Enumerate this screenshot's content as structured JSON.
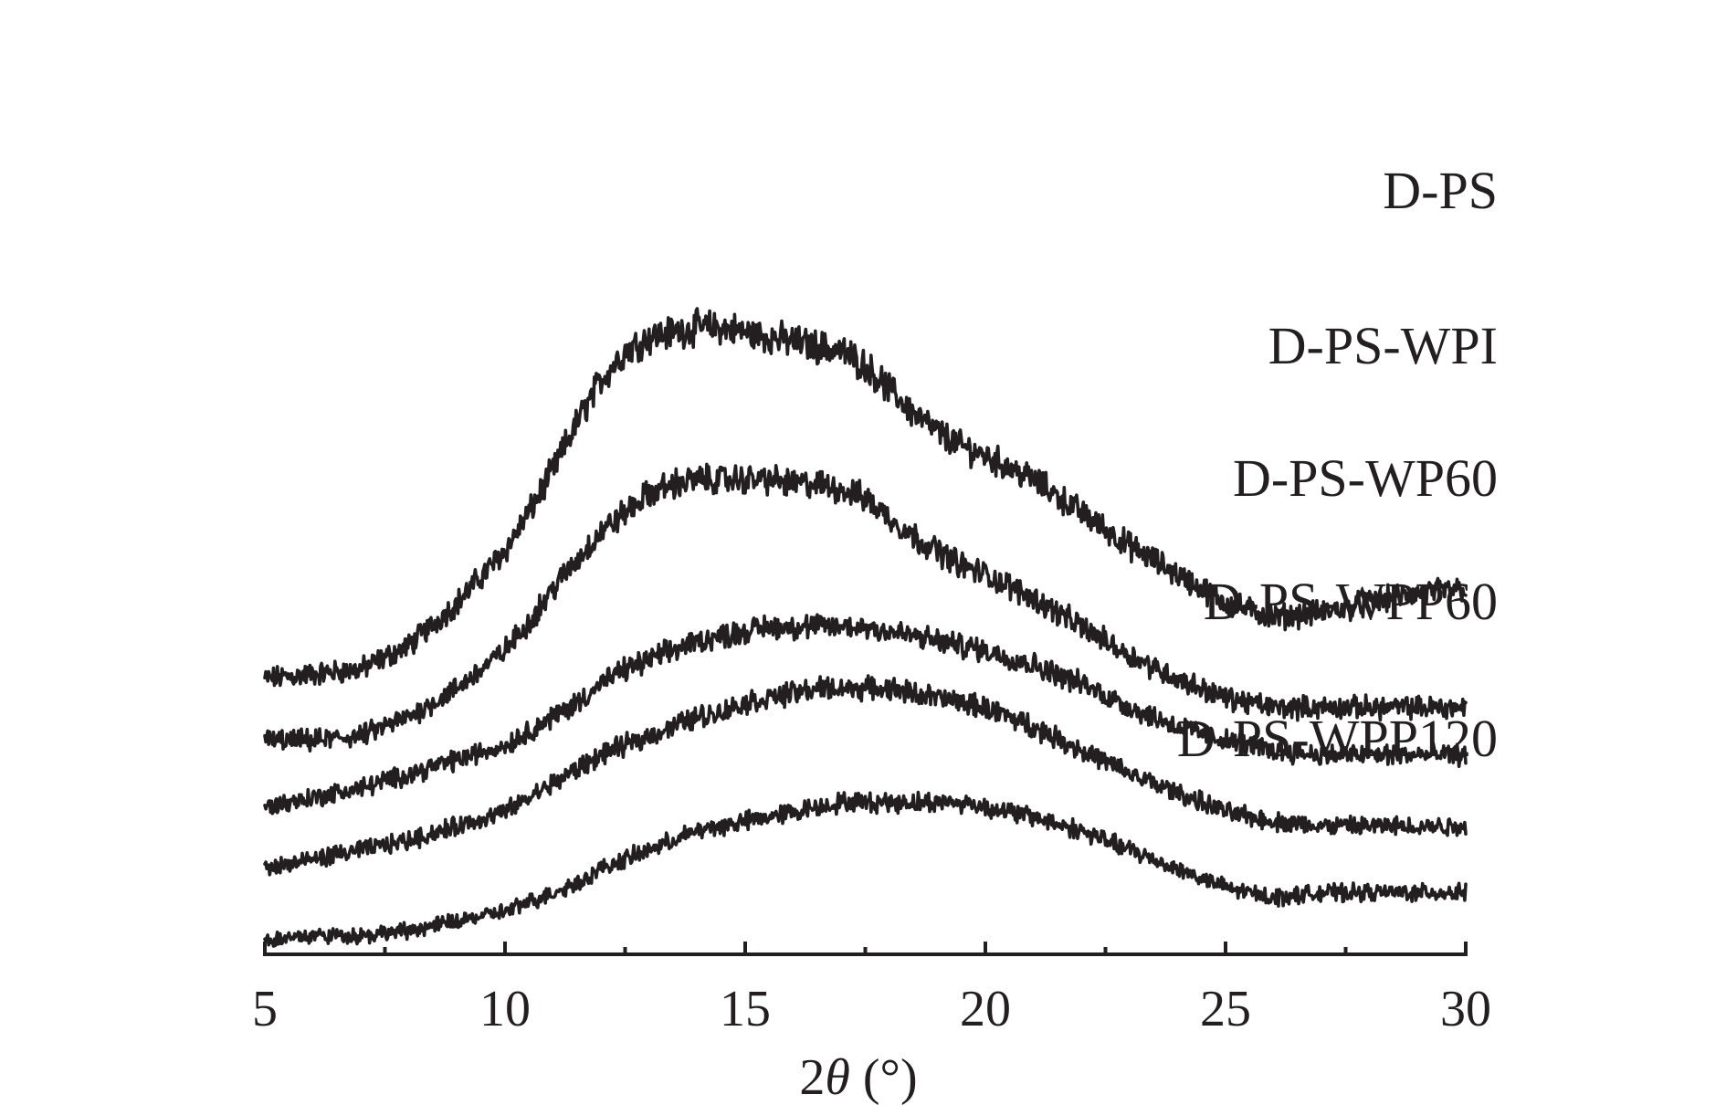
{
  "chart_data": {
    "type": "line",
    "xlabel_prefix": "2",
    "xlabel_symbol": "θ",
    "xlabel_suffix": " (°)",
    "xlim": [
      5,
      30
    ],
    "xticks": [
      5,
      10,
      15,
      20,
      25,
      30
    ],
    "xticks_minor": [
      7.5,
      12.5,
      17.5,
      22.5,
      27.5
    ],
    "y_axis_shown": false,
    "grid": false,
    "legend": "labels placed beside each curve (right side)",
    "line_color": "#231f20",
    "series": [
      {
        "name": "D-PS",
        "x": [
          5,
          6,
          7,
          8,
          9,
          10,
          10.5,
          11,
          11.5,
          12,
          12.5,
          13,
          13.5,
          14,
          14.5,
          15,
          15.5,
          16,
          16.5,
          17,
          17.5,
          18,
          18.5,
          19,
          19.5,
          20,
          21,
          22,
          23,
          24,
          25,
          26,
          27,
          28,
          29,
          30
        ],
        "y": [
          23,
          24,
          25,
          30,
          39,
          50,
          58,
          67,
          77,
          86,
          92,
          95,
          96,
          97,
          97,
          96,
          95,
          94,
          93,
          92,
          89,
          84,
          79,
          75,
          72,
          70,
          65,
          58,
          51,
          45,
          39,
          36,
          37,
          39,
          41,
          42
        ]
      },
      {
        "name": "D-PS-WPI",
        "x": [
          5,
          6,
          7,
          8,
          9,
          10,
          10.5,
          11,
          11.5,
          12,
          12.5,
          13,
          13.5,
          14,
          14.5,
          15,
          15.5,
          16,
          16.5,
          17,
          17.5,
          18,
          18.5,
          19,
          19.5,
          20,
          21,
          22,
          23,
          24,
          25,
          26,
          27,
          28,
          29,
          30
        ],
        "y": [
          10,
          10,
          11,
          15,
          21,
          29,
          35,
          42,
          48,
          54,
          58,
          62,
          64,
          65,
          65,
          65,
          65,
          64,
          64,
          63,
          61,
          57,
          53,
          50,
          47,
          45,
          40,
          34,
          28,
          23,
          19,
          17,
          17,
          17,
          17,
          17
        ]
      },
      {
        "name": "D-PS-WP60",
        "x": [
          5,
          6,
          7,
          8,
          9,
          10,
          10.5,
          11,
          11.5,
          12,
          12.5,
          13,
          13.5,
          14,
          14.5,
          15,
          15.5,
          16,
          16.5,
          17,
          17.5,
          18,
          18.5,
          19,
          19.5,
          20,
          21,
          22,
          23,
          24,
          25,
          26,
          27,
          28,
          29,
          30
        ],
        "y": [
          -4,
          -2,
          0,
          3,
          6,
          9,
          12,
          15,
          18,
          22,
          25,
          27,
          29,
          31,
          32,
          33,
          34,
          34,
          34,
          34,
          34,
          33,
          32,
          31,
          30,
          29,
          26,
          22,
          17,
          13,
          10,
          8,
          7,
          7,
          7,
          7
        ]
      },
      {
        "name": "D-PS-WPP60",
        "x": [
          5,
          6,
          7,
          8,
          9,
          10,
          10.5,
          11,
          11.5,
          12,
          12.5,
          13,
          13.5,
          14,
          14.5,
          15,
          15.5,
          16,
          16.5,
          17,
          17.5,
          18,
          18.5,
          19,
          19.5,
          20,
          21,
          22,
          23,
          24,
          25,
          26,
          27,
          28,
          29,
          30
        ],
        "y": [
          -17,
          -15,
          -13,
          -11,
          -8,
          -5,
          -2,
          1,
          4,
          7,
          9,
          11,
          13,
          15,
          16,
          18,
          19,
          20,
          21,
          21,
          21,
          21,
          20,
          19,
          18,
          17,
          13,
          8,
          3,
          -1,
          -5,
          -7,
          -8,
          -8,
          -8,
          -8
        ]
      },
      {
        "name": "D-PS-WPP120",
        "x": [
          5,
          6,
          7,
          8,
          9,
          10,
          10.5,
          11,
          11.5,
          12,
          12.5,
          13,
          13.5,
          14,
          14.5,
          15,
          15.5,
          16,
          16.5,
          17,
          17.5,
          18,
          18.5,
          19,
          19.5,
          20,
          21,
          22,
          23,
          24,
          25,
          26,
          27,
          28,
          29,
          30
        ],
        "y": [
          -32,
          -31,
          -31,
          -30,
          -28,
          -26,
          -24,
          -22,
          -20,
          -17,
          -15,
          -13,
          -11,
          -9,
          -8,
          -7,
          -6,
          -5,
          -4,
          -3,
          -3,
          -3,
          -3,
          -3,
          -3,
          -4,
          -6,
          -9,
          -13,
          -17,
          -21,
          -23,
          -22,
          -22,
          -22,
          -22
        ]
      }
    ]
  }
}
